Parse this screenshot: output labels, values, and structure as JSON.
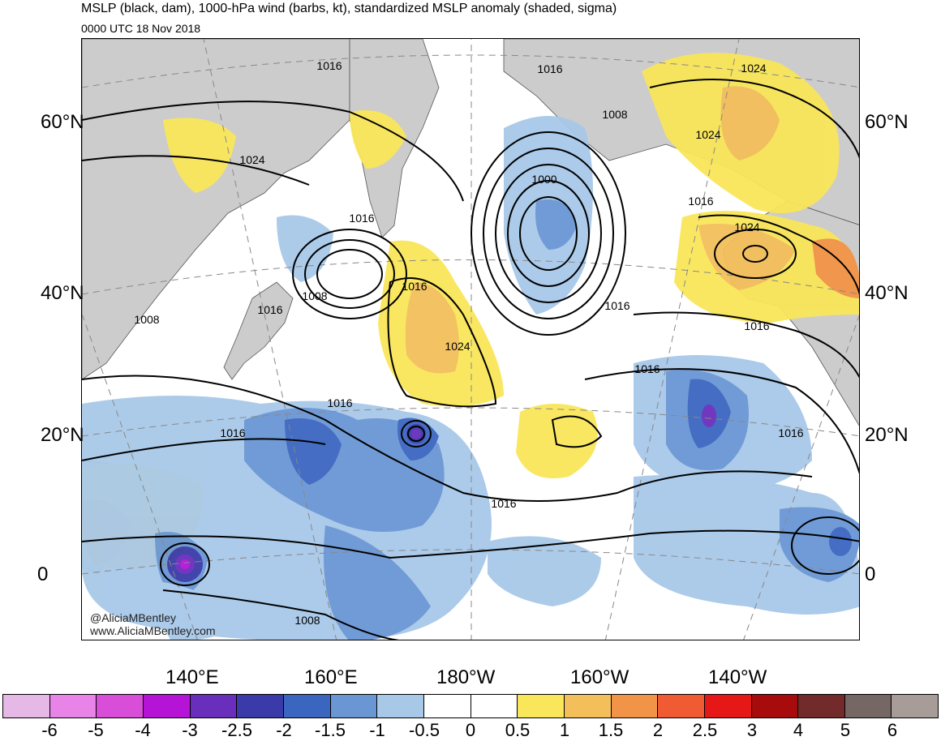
{
  "header": {
    "title": "MSLP (black, dam), 1000-hPa wind (barbs, kt), standardized MSLP anomaly (shaded, sigma)",
    "valid_time": "0000 UTC 18 Nov 2018"
  },
  "map": {
    "projection": "polar stereographic (North Pacific)",
    "lat_labels_left": [
      "60°N",
      "40°N",
      "20°N",
      "0"
    ],
    "lat_labels_right": [
      "60°N",
      "40°N",
      "20°N",
      "0"
    ],
    "lon_labels": [
      "140°E",
      "160°E",
      "180°W",
      "160°W",
      "140°W"
    ],
    "isobar_labels": [
      "1016",
      "1016",
      "1008",
      "1024",
      "1024",
      "1016",
      "1000",
      "1016",
      "1024",
      "1016",
      "1008",
      "1016",
      "1024",
      "1024",
      "1016",
      "1008",
      "1016",
      "1016",
      "1016",
      "1016",
      "1016",
      "1008"
    ],
    "credit_handle": "@AliciaMBentley",
    "credit_url": "www.AliciaMBentley.com",
    "colors": {
      "land": "#cccccc",
      "ocean": "#ffffff",
      "isobar": "#000000",
      "graticule": "#888888"
    }
  },
  "colorbar": {
    "labels": [
      "-6",
      "-5",
      "-4",
      "-3",
      "-2.5",
      "-2",
      "-1.5",
      "-1",
      "-0.5",
      "0",
      "0.5",
      "1",
      "1.5",
      "2",
      "2.5",
      "3",
      "4",
      "5",
      "6"
    ],
    "colors": [
      "#e6b8e6",
      "#e883e8",
      "#d84ed8",
      "#b514d6",
      "#6a2ebc",
      "#3a3aa9",
      "#3a66c0",
      "#6a96d4",
      "#a8c8e8",
      "#ffffff",
      "#ffffff",
      "#f9e65a",
      "#f3bf5b",
      "#f29447",
      "#f15b34",
      "#e61717",
      "#a80b0b",
      "#732a2a",
      "#756864",
      "#a89c98"
    ]
  }
}
